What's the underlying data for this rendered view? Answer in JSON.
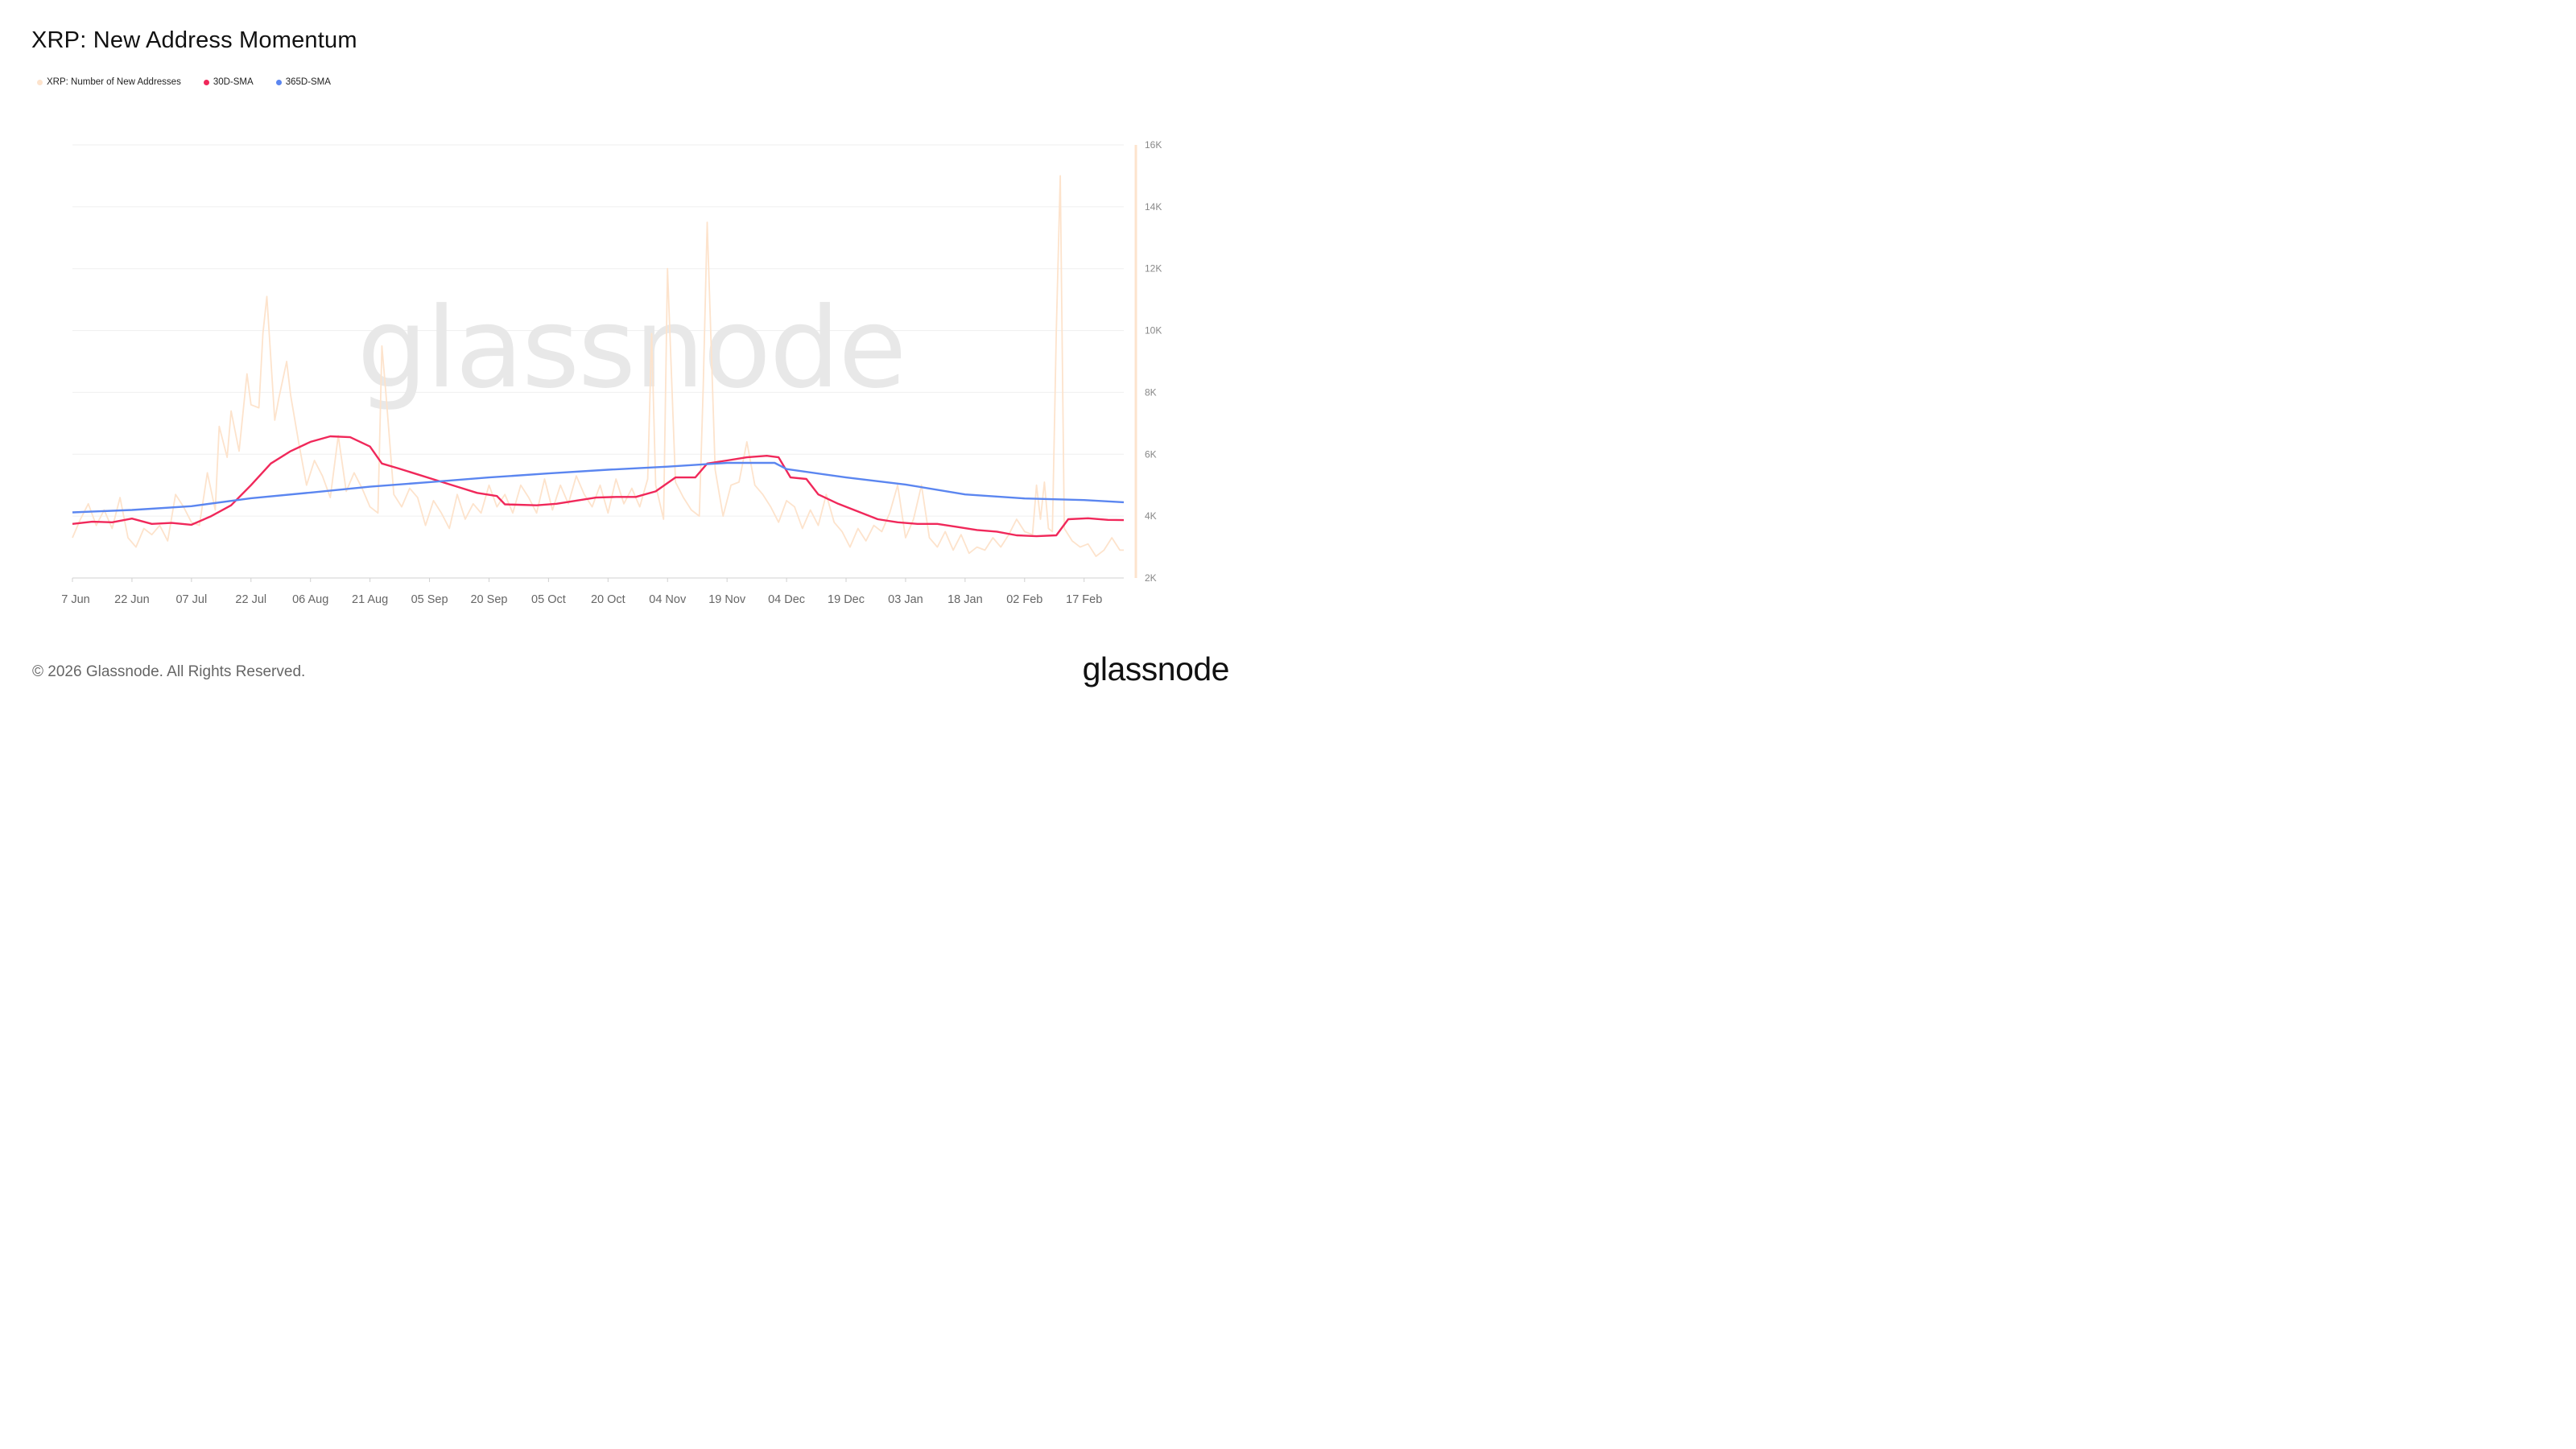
{
  "header": {
    "title": "XRP: New Address Momentum"
  },
  "legend": [
    {
      "label": "XRP: Number of New Addresses",
      "color": "#fde3cc"
    },
    {
      "label": "30D-SMA",
      "color": "#f0285a"
    },
    {
      "label": "365D-SMA",
      "color": "#5b86f0"
    }
  ],
  "watermark": "glassnode",
  "footer": {
    "copyright": "© 2026 Glassnode. All Rights Reserved.",
    "logo": "glassnode"
  },
  "chart_data": {
    "type": "line",
    "title": "XRP: New Address Momentum",
    "x_start": "2025-06-07",
    "x_end": "2026-02-27",
    "x_tick_labels": [
      "7 Jun",
      "22 Jun",
      "07 Jul",
      "22 Jul",
      "06 Aug",
      "21 Aug",
      "05 Sep",
      "20 Sep",
      "05 Oct",
      "20 Oct",
      "04 Nov",
      "19 Nov",
      "04 Dec",
      "19 Dec",
      "03 Jan",
      "18 Jan",
      "02 Feb",
      "17 Feb"
    ],
    "y_tick_labels": [
      "2K",
      "4K",
      "6K",
      "8K",
      "10K",
      "12K",
      "14K",
      "16K"
    ],
    "y_ticks": [
      2000,
      4000,
      6000,
      8000,
      10000,
      12000,
      14000,
      16000
    ],
    "ylim": [
      2000,
      16000
    ],
    "grid": true,
    "legend_position": "top-left",
    "series": [
      {
        "name": "XRP: Number of New Addresses",
        "color": "#fde3cc",
        "points": [
          [
            "2025-06-07",
            3300
          ],
          [
            "2025-06-09",
            3900
          ],
          [
            "2025-06-11",
            4400
          ],
          [
            "2025-06-13",
            3700
          ],
          [
            "2025-06-15",
            4200
          ],
          [
            "2025-06-17",
            3600
          ],
          [
            "2025-06-19",
            4600
          ],
          [
            "2025-06-21",
            3300
          ],
          [
            "2025-06-23",
            3000
          ],
          [
            "2025-06-25",
            3600
          ],
          [
            "2025-06-27",
            3400
          ],
          [
            "2025-06-29",
            3700
          ],
          [
            "2025-07-01",
            3200
          ],
          [
            "2025-07-03",
            4700
          ],
          [
            "2025-07-05",
            4300
          ],
          [
            "2025-07-07",
            3800
          ],
          [
            "2025-07-09",
            3700
          ],
          [
            "2025-07-11",
            5400
          ],
          [
            "2025-07-13",
            4200
          ],
          [
            "2025-07-14",
            6900
          ],
          [
            "2025-07-16",
            5900
          ],
          [
            "2025-07-17",
            7400
          ],
          [
            "2025-07-19",
            6100
          ],
          [
            "2025-07-21",
            8600
          ],
          [
            "2025-07-22",
            7600
          ],
          [
            "2025-07-24",
            7500
          ],
          [
            "2025-07-25",
            9900
          ],
          [
            "2025-07-26",
            11100
          ],
          [
            "2025-07-28",
            7100
          ],
          [
            "2025-07-29",
            7800
          ],
          [
            "2025-07-31",
            9000
          ],
          [
            "2025-08-01",
            7900
          ],
          [
            "2025-08-03",
            6400
          ],
          [
            "2025-08-05",
            5000
          ],
          [
            "2025-08-07",
            5800
          ],
          [
            "2025-08-09",
            5300
          ],
          [
            "2025-08-11",
            4600
          ],
          [
            "2025-08-13",
            6600
          ],
          [
            "2025-08-15",
            4800
          ],
          [
            "2025-08-17",
            5400
          ],
          [
            "2025-08-19",
            4900
          ],
          [
            "2025-08-21",
            4300
          ],
          [
            "2025-08-23",
            4100
          ],
          [
            "2025-08-24",
            9500
          ],
          [
            "2025-08-25",
            8000
          ],
          [
            "2025-08-27",
            4700
          ],
          [
            "2025-08-29",
            4300
          ],
          [
            "2025-08-31",
            4900
          ],
          [
            "2025-09-02",
            4600
          ],
          [
            "2025-09-04",
            3700
          ],
          [
            "2025-09-06",
            4500
          ],
          [
            "2025-09-08",
            4100
          ],
          [
            "2025-09-10",
            3600
          ],
          [
            "2025-09-12",
            4700
          ],
          [
            "2025-09-14",
            3900
          ],
          [
            "2025-09-16",
            4400
          ],
          [
            "2025-09-18",
            4100
          ],
          [
            "2025-09-20",
            5000
          ],
          [
            "2025-09-22",
            4300
          ],
          [
            "2025-09-24",
            4700
          ],
          [
            "2025-09-26",
            4100
          ],
          [
            "2025-09-28",
            5000
          ],
          [
            "2025-09-30",
            4600
          ],
          [
            "2025-10-02",
            4100
          ],
          [
            "2025-10-04",
            5200
          ],
          [
            "2025-10-06",
            4200
          ],
          [
            "2025-10-08",
            5000
          ],
          [
            "2025-10-10",
            4400
          ],
          [
            "2025-10-12",
            5300
          ],
          [
            "2025-10-14",
            4700
          ],
          [
            "2025-10-16",
            4300
          ],
          [
            "2025-10-18",
            5000
          ],
          [
            "2025-10-20",
            4100
          ],
          [
            "2025-10-22",
            5200
          ],
          [
            "2025-10-24",
            4400
          ],
          [
            "2025-10-26",
            4900
          ],
          [
            "2025-10-28",
            4300
          ],
          [
            "2025-10-30",
            5200
          ],
          [
            "2025-10-31",
            9900
          ],
          [
            "2025-11-01",
            5000
          ],
          [
            "2025-11-03",
            3900
          ],
          [
            "2025-11-04",
            12000
          ],
          [
            "2025-11-06",
            5100
          ],
          [
            "2025-11-08",
            4600
          ],
          [
            "2025-11-10",
            4200
          ],
          [
            "2025-11-12",
            4000
          ],
          [
            "2025-11-13",
            8200
          ],
          [
            "2025-11-14",
            13500
          ],
          [
            "2025-11-16",
            5500
          ],
          [
            "2025-11-18",
            4000
          ],
          [
            "2025-11-20",
            5000
          ],
          [
            "2025-11-22",
            5100
          ],
          [
            "2025-11-24",
            6400
          ],
          [
            "2025-11-26",
            5000
          ],
          [
            "2025-11-28",
            4700
          ],
          [
            "2025-11-30",
            4300
          ],
          [
            "2025-12-02",
            3800
          ],
          [
            "2025-12-04",
            4500
          ],
          [
            "2025-12-06",
            4300
          ],
          [
            "2025-12-08",
            3600
          ],
          [
            "2025-12-10",
            4200
          ],
          [
            "2025-12-12",
            3700
          ],
          [
            "2025-12-14",
            4700
          ],
          [
            "2025-12-16",
            3800
          ],
          [
            "2025-12-18",
            3500
          ],
          [
            "2025-12-20",
            3000
          ],
          [
            "2025-12-22",
            3600
          ],
          [
            "2025-12-24",
            3200
          ],
          [
            "2025-12-26",
            3700
          ],
          [
            "2025-12-28",
            3500
          ],
          [
            "2025-12-30",
            4100
          ],
          [
            "2026-01-01",
            5000
          ],
          [
            "2026-01-03",
            3300
          ],
          [
            "2026-01-05",
            3900
          ],
          [
            "2026-01-07",
            5000
          ],
          [
            "2026-01-09",
            3300
          ],
          [
            "2026-01-11",
            3000
          ],
          [
            "2026-01-13",
            3500
          ],
          [
            "2026-01-15",
            2900
          ],
          [
            "2026-01-17",
            3400
          ],
          [
            "2026-01-19",
            2800
          ],
          [
            "2026-01-21",
            3000
          ],
          [
            "2026-01-23",
            2900
          ],
          [
            "2026-01-25",
            3300
          ],
          [
            "2026-01-27",
            3000
          ],
          [
            "2026-01-29",
            3400
          ],
          [
            "2026-01-31",
            3900
          ],
          [
            "2026-02-02",
            3500
          ],
          [
            "2026-02-04",
            3400
          ],
          [
            "2026-02-05",
            5000
          ],
          [
            "2026-02-06",
            3900
          ],
          [
            "2026-02-07",
            5100
          ],
          [
            "2026-02-08",
            3600
          ],
          [
            "2026-02-09",
            3500
          ],
          [
            "2026-02-10",
            10000
          ],
          [
            "2026-02-11",
            15000
          ],
          [
            "2026-02-12",
            3600
          ],
          [
            "2026-02-14",
            3200
          ],
          [
            "2026-02-16",
            3000
          ],
          [
            "2026-02-18",
            3100
          ],
          [
            "2026-02-20",
            2700
          ],
          [
            "2026-02-22",
            2900
          ],
          [
            "2026-02-24",
            3300
          ],
          [
            "2026-02-26",
            2900
          ],
          [
            "2026-02-27",
            2900
          ]
        ]
      },
      {
        "name": "30D-SMA",
        "color": "#f0285a",
        "points": [
          [
            "2025-06-07",
            3750
          ],
          [
            "2025-06-12",
            3820
          ],
          [
            "2025-06-17",
            3800
          ],
          [
            "2025-06-22",
            3920
          ],
          [
            "2025-06-27",
            3750
          ],
          [
            "2025-07-02",
            3780
          ],
          [
            "2025-07-07",
            3720
          ],
          [
            "2025-07-12",
            4000
          ],
          [
            "2025-07-17",
            4350
          ],
          [
            "2025-07-22",
            5000
          ],
          [
            "2025-07-27",
            5700
          ],
          [
            "2025-08-01",
            6100
          ],
          [
            "2025-08-06",
            6400
          ],
          [
            "2025-08-11",
            6580
          ],
          [
            "2025-08-16",
            6550
          ],
          [
            "2025-08-21",
            6250
          ],
          [
            "2025-08-24",
            5700
          ],
          [
            "2025-08-28",
            5550
          ],
          [
            "2025-09-02",
            5350
          ],
          [
            "2025-09-07",
            5150
          ],
          [
            "2025-09-12",
            4950
          ],
          [
            "2025-09-17",
            4750
          ],
          [
            "2025-09-22",
            4650
          ],
          [
            "2025-09-24",
            4380
          ],
          [
            "2025-10-02",
            4350
          ],
          [
            "2025-10-07",
            4400
          ],
          [
            "2025-10-12",
            4500
          ],
          [
            "2025-10-17",
            4600
          ],
          [
            "2025-10-22",
            4620
          ],
          [
            "2025-10-27",
            4620
          ],
          [
            "2025-11-01",
            4800
          ],
          [
            "2025-11-06",
            5250
          ],
          [
            "2025-11-11",
            5250
          ],
          [
            "2025-11-14",
            5700
          ],
          [
            "2025-11-19",
            5800
          ],
          [
            "2025-11-24",
            5900
          ],
          [
            "2025-11-29",
            5950
          ],
          [
            "2025-12-02",
            5900
          ],
          [
            "2025-12-05",
            5250
          ],
          [
            "2025-12-09",
            5200
          ],
          [
            "2025-12-12",
            4700
          ],
          [
            "2025-12-17",
            4400
          ],
          [
            "2025-12-22",
            4150
          ],
          [
            "2025-12-27",
            3900
          ],
          [
            "2026-01-01",
            3800
          ],
          [
            "2026-01-06",
            3750
          ],
          [
            "2026-01-11",
            3750
          ],
          [
            "2026-01-16",
            3650
          ],
          [
            "2026-01-21",
            3550
          ],
          [
            "2026-01-26",
            3500
          ],
          [
            "2026-01-31",
            3380
          ],
          [
            "2026-02-05",
            3350
          ],
          [
            "2026-02-10",
            3380
          ],
          [
            "2026-02-13",
            3900
          ],
          [
            "2026-02-18",
            3930
          ],
          [
            "2026-02-23",
            3880
          ],
          [
            "2026-02-27",
            3870
          ]
        ]
      },
      {
        "name": "365D-SMA",
        "color": "#5b86f0",
        "points": [
          [
            "2025-06-07",
            4120
          ],
          [
            "2025-06-22",
            4200
          ],
          [
            "2025-07-07",
            4320
          ],
          [
            "2025-07-22",
            4580
          ],
          [
            "2025-08-06",
            4760
          ],
          [
            "2025-08-21",
            4950
          ],
          [
            "2025-09-05",
            5100
          ],
          [
            "2025-09-20",
            5250
          ],
          [
            "2025-10-05",
            5380
          ],
          [
            "2025-10-20",
            5500
          ],
          [
            "2025-11-04",
            5600
          ],
          [
            "2025-11-19",
            5720
          ],
          [
            "2025-12-01",
            5720
          ],
          [
            "2025-12-04",
            5520
          ],
          [
            "2025-12-19",
            5250
          ],
          [
            "2026-01-03",
            5020
          ],
          [
            "2026-01-18",
            4700
          ],
          [
            "2026-02-02",
            4570
          ],
          [
            "2026-02-17",
            4520
          ],
          [
            "2026-02-27",
            4450
          ]
        ]
      }
    ]
  }
}
